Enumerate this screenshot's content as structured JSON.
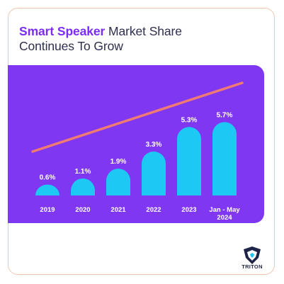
{
  "title": {
    "accent": "Smart Speaker",
    "rest_line1": " Market Share",
    "rest_line2": "Continues To Grow"
  },
  "colors": {
    "panel": "#7f37f2",
    "bar": "#1ec8f5",
    "trend": "#f07b73",
    "accent": "#7b2cf6",
    "label": "#ffffff"
  },
  "brand": {
    "name": "TRITON",
    "icon": "triton-logo-icon"
  },
  "chart_data": {
    "type": "bar",
    "categories": [
      "2019",
      "2020",
      "2021",
      "2022",
      "2023",
      "Jan - May 2024"
    ],
    "values": [
      0.6,
      1.1,
      1.9,
      3.3,
      5.3,
      5.7
    ],
    "value_labels": [
      "0.6%",
      "1.1%",
      "1.9%",
      "3.3%",
      "5.3%",
      "5.7%"
    ],
    "category_labels": [
      [
        "2019"
      ],
      [
        "2020"
      ],
      [
        "2021"
      ],
      [
        "2022"
      ],
      [
        "2023"
      ],
      [
        "Jan - May",
        "2024"
      ]
    ],
    "title": "Smart Speaker Market Share Continues To Grow",
    "xlabel": "",
    "ylabel": "",
    "grid": false,
    "trend_line": true
  }
}
